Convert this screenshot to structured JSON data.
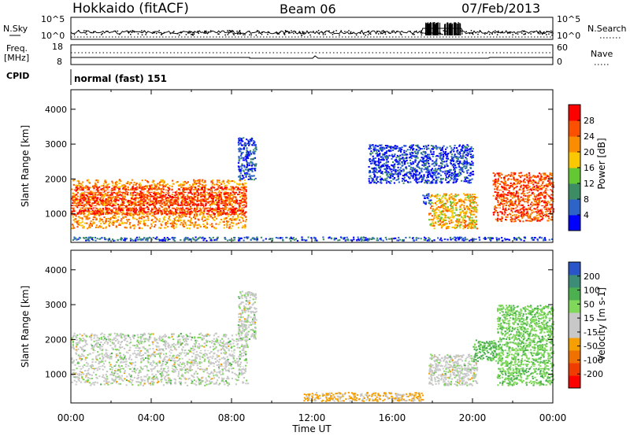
{
  "header": {
    "station": "Hokkaido (fitACF)",
    "beam": "Beam 06",
    "date": "07/Feb/2013"
  },
  "status_panels": {
    "nsky_label": "N.Sky",
    "nsky_ticks": [
      "10^5",
      "10^0"
    ],
    "nsearch_label": "N.Search",
    "nsearch_ticks": [
      "10^5",
      "10^0"
    ],
    "freq_label": "Freq.",
    "freq_unit": "[MHz]",
    "freq_ticks": [
      "18",
      "8"
    ],
    "nave_label": "Nave",
    "nave_ticks": [
      "60",
      "0"
    ],
    "cpid_label": "CPID",
    "cpid_value": "normal (fast) 151"
  },
  "colors": {
    "power": [
      "#0000ff",
      "#2e64c8",
      "#3c8c64",
      "#64c832",
      "#fac800",
      "#fa8c00",
      "#fa5000",
      "#ff0000"
    ],
    "velocity": [
      "#2a55c8",
      "#3c8c78",
      "#4caf50",
      "#7fd85a",
      "#c8c8c8",
      "#c8c8c8",
      "#f5a000",
      "#f07000",
      "#f03c00",
      "#ff0000"
    ]
  },
  "chart_data": [
    {
      "type": "heatmap",
      "title": "",
      "xlabel": "",
      "ylabel": "Slant Range [km]",
      "xlim": [
        0,
        24
      ],
      "ylim": [
        180,
        4560
      ],
      "xticks": [
        "00:00",
        "04:00",
        "08:00",
        "12:00",
        "16:00",
        "20:00",
        "00:00"
      ],
      "yticks": [
        "1000",
        "2000",
        "3000",
        "4000"
      ],
      "colorbar": {
        "label": "Power [dB]",
        "range": [
          0,
          32
        ],
        "ticks": [
          "4",
          "8",
          "12",
          "16",
          "20",
          "24",
          "28"
        ]
      },
      "regions": [
        {
          "t": [
            0.0,
            8.7
          ],
          "range_km": [
            600,
            2000
          ],
          "value_db": 22
        },
        {
          "t": [
            0.0,
            8.7
          ],
          "range_km": [
            1000,
            1800
          ],
          "value_db": 28
        },
        {
          "t": [
            8.3,
            9.2
          ],
          "range_km": [
            2000,
            3200
          ],
          "value_db": 5
        },
        {
          "t": [
            17.8,
            20.2
          ],
          "range_km": [
            600,
            1600
          ],
          "value_db": 20
        },
        {
          "t": [
            17.5,
            17.9
          ],
          "range_km": [
            1300,
            1600
          ],
          "value_db": 6
        },
        {
          "t": [
            14.8,
            20.0
          ],
          "range_km": [
            1900,
            3000
          ],
          "value_db": 4
        },
        {
          "t": [
            21.0,
            24.0
          ],
          "range_km": [
            800,
            2200
          ],
          "value_db": 26
        },
        {
          "t": [
            0.0,
            24.0
          ],
          "range_km": [
            250,
            350
          ],
          "value_db": 6
        }
      ]
    },
    {
      "type": "heatmap",
      "title": "",
      "xlabel": "Time UT",
      "ylabel": "Slant Range [km]",
      "xlim": [
        0,
        24
      ],
      "ylim": [
        180,
        4560
      ],
      "xticks": [
        "00:00",
        "04:00",
        "08:00",
        "12:00",
        "16:00",
        "20:00",
        "00:00"
      ],
      "yticks": [
        "1000",
        "2000",
        "3000",
        "4000"
      ],
      "colorbar": {
        "label": "Velocity [m s-1]",
        "range": [
          -250,
          250
        ],
        "ticks": [
          "200",
          "100",
          "50",
          "15",
          "-15",
          "-50",
          "-100",
          "-200"
        ]
      },
      "regions": [
        {
          "t": [
            0.0,
            8.8
          ],
          "range_km": [
            700,
            2200
          ],
          "value_ms": 0
        },
        {
          "t": [
            8.3,
            9.2
          ],
          "range_km": [
            2000,
            3400
          ],
          "value_ms": 0
        },
        {
          "t": [
            17.8,
            20.2
          ],
          "range_km": [
            700,
            1600
          ],
          "value_ms": 0
        },
        {
          "t": [
            20.0,
            21.2
          ],
          "range_km": [
            1400,
            2000
          ],
          "value_ms": 60
        },
        {
          "t": [
            21.2,
            24.0
          ],
          "range_km": [
            700,
            3000
          ],
          "value_ms": 40
        },
        {
          "t": [
            11.5,
            17.5
          ],
          "range_km": [
            250,
            500
          ],
          "value_ms": -60
        }
      ]
    }
  ]
}
